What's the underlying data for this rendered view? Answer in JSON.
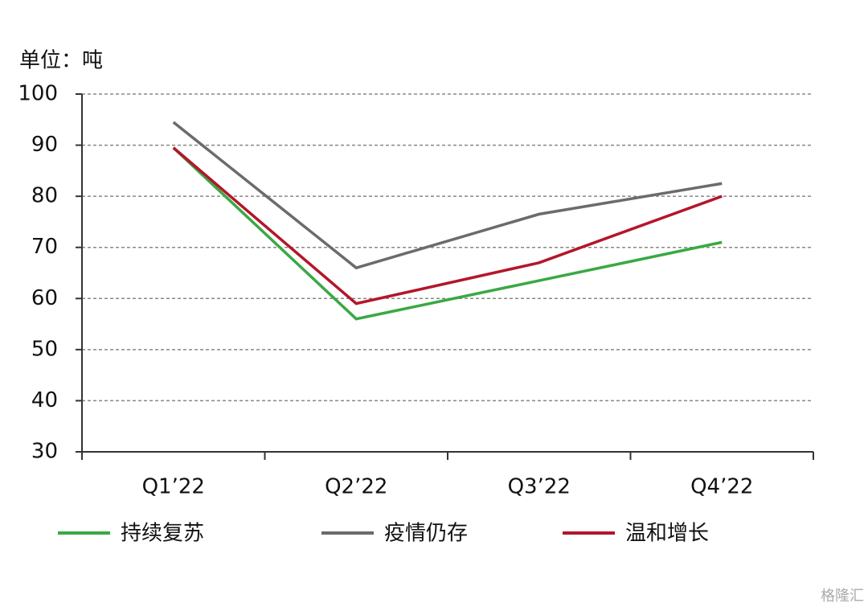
{
  "chart_data": {
    "type": "line",
    "y_label": "单位：吨",
    "categories": [
      "Q1’22",
      "Q2’22",
      "Q3’22",
      "Q4’22"
    ],
    "series": [
      {
        "name": "持续复苏",
        "color": "#3aa845",
        "values": [
          89.5,
          56,
          63.5,
          71
        ]
      },
      {
        "name": "疫情仍存",
        "color": "#6b6b6b",
        "values": [
          94.5,
          66,
          76.5,
          82.5
        ]
      },
      {
        "name": "温和增长",
        "color": "#b3162a",
        "values": [
          89.5,
          59,
          67,
          80
        ]
      }
    ],
    "ylim": [
      30,
      100
    ],
    "yticks": [
      30,
      40,
      50,
      60,
      70,
      80,
      90,
      100
    ],
    "grid": true,
    "watermark": "格隆汇"
  }
}
